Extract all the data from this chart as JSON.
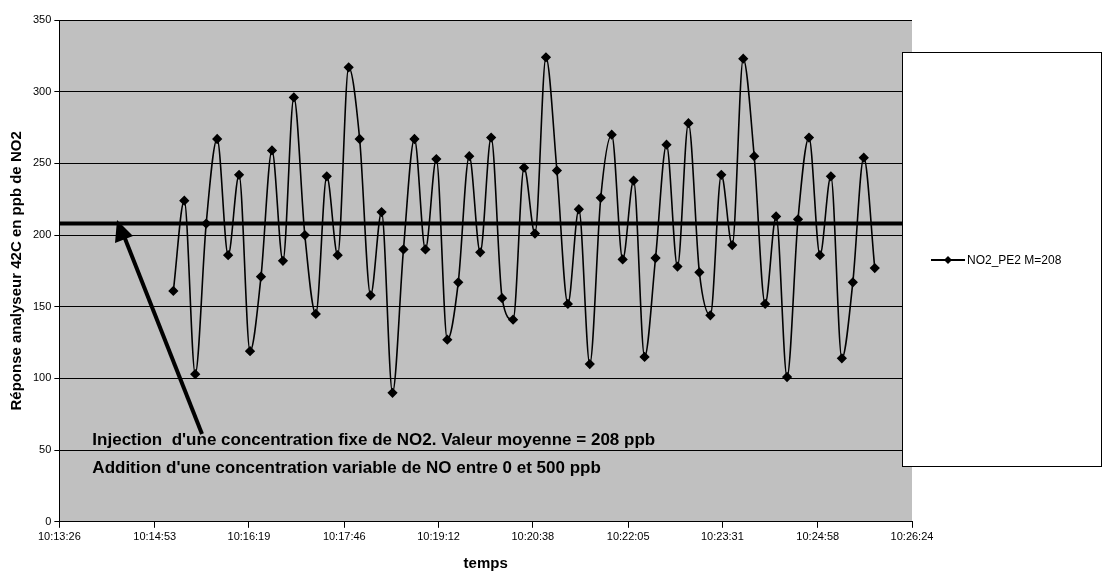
{
  "chart_data": {
    "type": "line",
    "xlabel": "temps",
    "ylabel": "Réponse analyseur 42C en ppb de NO2",
    "x": [
      10.25278,
      10.25556,
      10.25833,
      10.26111,
      10.26389,
      10.26667,
      10.26944,
      10.27222,
      10.275,
      10.27778,
      10.28056,
      10.28333,
      10.28611,
      10.28889,
      10.29167,
      10.29444,
      10.29722,
      10.3,
      10.30278,
      10.30556,
      10.30833,
      10.31111,
      10.31389,
      10.31667,
      10.31944,
      10.32222,
      10.325,
      10.32778,
      10.33056,
      10.33333,
      10.33611,
      10.33889,
      10.34167,
      10.34444,
      10.34722,
      10.35,
      10.35278,
      10.35556,
      10.35833,
      10.36111,
      10.36389,
      10.36667,
      10.36944,
      10.37222,
      10.375,
      10.37778,
      10.38056,
      10.38333,
      10.38611,
      10.38889,
      10.39167,
      10.39444,
      10.39722,
      10.4,
      10.40278,
      10.40556,
      10.40833,
      10.41111,
      10.41389,
      10.41667,
      10.41944,
      10.42222,
      10.425,
      10.42778,
      10.43056
    ],
    "series": [
      {
        "name": "NO2_PE2 M=208",
        "color": "#000000",
        "values": [
          161,
          224,
          103,
          208,
          267,
          186,
          242,
          119,
          171,
          259,
          182,
          296,
          200,
          145,
          241,
          186,
          317,
          267,
          158,
          216,
          90,
          190,
          267,
          190,
          253,
          127,
          167,
          255,
          188,
          268,
          156,
          141,
          247,
          201,
          324,
          245,
          152,
          218,
          110,
          226,
          270,
          183,
          238,
          115,
          184,
          263,
          178,
          278,
          174,
          144,
          242,
          193,
          323,
          255,
          152,
          213,
          101,
          211,
          268,
          186,
          241,
          114,
          167,
          254,
          177
        ]
      }
    ],
    "xlim": [
      10.22389,
      10.44
    ],
    "xticks": [
      {
        "value": 10.22389,
        "label": "10:13:26"
      },
      {
        "value": 10.24806,
        "label": "10:14:53"
      },
      {
        "value": 10.27194,
        "label": "10:16:19"
      },
      {
        "value": 10.29611,
        "label": "10:17:46"
      },
      {
        "value": 10.32,
        "label": "10:19:12"
      },
      {
        "value": 10.34389,
        "label": "10:20:38"
      },
      {
        "value": 10.36806,
        "label": "10:22:05"
      },
      {
        "value": 10.39194,
        "label": "10:23:31"
      },
      {
        "value": 10.41611,
        "label": "10:24:58"
      },
      {
        "value": 10.44,
        "label": "10:26:24"
      }
    ],
    "ylim": [
      0,
      350
    ],
    "yticks": [
      0,
      50,
      100,
      150,
      200,
      250,
      300,
      350
    ],
    "grid": "y",
    "legend": "right",
    "marker": "diamond",
    "line_style": "solid",
    "ref_lines": [
      {
        "axis": "y",
        "value": 208,
        "color": "#000000"
      }
    ],
    "annotations": [
      "Injection  d'une concentration fixe de NO2. Valeur moyenne = 208 ppb",
      "Addition d'une concentration variable de NO entre 0 et 500 ppb"
    ]
  }
}
